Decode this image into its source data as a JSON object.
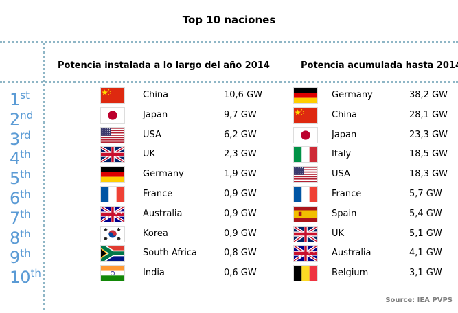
{
  "title": "Top 10 naciones",
  "left_header": "Potencia instalada a lo largo del año 2014",
  "right_header": "Potencia acumulada hasta 2014",
  "source": "Source: IEA PVPS",
  "ranks": [
    {
      "num": "1",
      "suffix": "st"
    },
    {
      "num": "2",
      "suffix": "nd"
    },
    {
      "num": "3",
      "suffix": "rd"
    },
    {
      "num": "4",
      "suffix": "th"
    },
    {
      "num": "5",
      "suffix": "th"
    },
    {
      "num": "6",
      "suffix": "th"
    },
    {
      "num": "7",
      "suffix": "th"
    },
    {
      "num": "8",
      "suffix": "th"
    },
    {
      "num": "9",
      "suffix": "th"
    },
    {
      "num": "10",
      "suffix": "th"
    }
  ],
  "installed_2014": [
    {
      "country": "China",
      "value": "10,6 GW",
      "flag": "china-flag-icon"
    },
    {
      "country": "Japan",
      "value": "9,7 GW",
      "flag": "japan-flag-icon"
    },
    {
      "country": "USA",
      "value": "6,2 GW",
      "flag": "usa-flag-icon"
    },
    {
      "country": "UK",
      "value": "2,3 GW",
      "flag": "uk-flag-icon"
    },
    {
      "country": "Germany",
      "value": "1,9 GW",
      "flag": "germany-flag-icon"
    },
    {
      "country": "France",
      "value": "0,9 GW",
      "flag": "france-flag-icon"
    },
    {
      "country": "Australia",
      "value": "0,9 GW",
      "flag": "australia-flag-icon"
    },
    {
      "country": "Korea",
      "value": "0,9 GW",
      "flag": "korea-flag-icon"
    },
    {
      "country": "South Africa",
      "value": "0,8 GW",
      "flag": "south-africa-flag-icon"
    },
    {
      "country": "India",
      "value": "0,6 GW",
      "flag": "india-flag-icon"
    }
  ],
  "cumulative_2014": [
    {
      "country": "Germany",
      "value": "38,2 GW",
      "flag": "germany-flag-icon"
    },
    {
      "country": "China",
      "value": "28,1 GW",
      "flag": "china-flag-icon"
    },
    {
      "country": "Japan",
      "value": "23,3 GW",
      "flag": "japan-flag-icon"
    },
    {
      "country": "Italy",
      "value": "18,5 GW",
      "flag": "italy-flag-icon"
    },
    {
      "country": "USA",
      "value": "18,3 GW",
      "flag": "usa-flag-icon"
    },
    {
      "country": "France",
      "value": "5,7 GW",
      "flag": "france-flag-icon"
    },
    {
      "country": "Spain",
      "value": "5,4 GW",
      "flag": "spain-flag-icon"
    },
    {
      "country": "UK",
      "value": "5,1 GW",
      "flag": "uk-flag-icon"
    },
    {
      "country": "Australia",
      "value": "4,1 GW",
      "flag": "australia-flag-icon"
    },
    {
      "country": "Belgium",
      "value": "3,1 GW",
      "flag": "belgium-flag-icon"
    }
  ],
  "colors": {
    "rank": "#5b9bd5",
    "dotted_border": "#8fb6c6",
    "source": "#7f7f7f"
  }
}
